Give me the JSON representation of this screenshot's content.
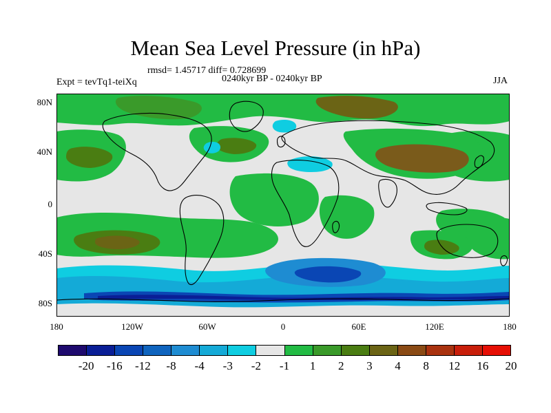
{
  "title": "Mean Sea Level Pressure (in hPa)",
  "stats": "rmsd= 1.45717 diff= 0.728699",
  "period": "0240kyr BP - 0240kyr BP",
  "experiment": "Expt = tevTq1-teiXq",
  "season": "JJA",
  "lat_labels": [
    "80N",
    "40N",
    "0",
    "40S",
    "80S"
  ],
  "lon_labels": [
    "180",
    "120W",
    "60W",
    "0",
    "60E",
    "120E",
    "180"
  ],
  "colorbar": {
    "colors": [
      "#1e0a6e",
      "#0a1e96",
      "#0a46b4",
      "#0f64be",
      "#1e8cd2",
      "#14aad7",
      "#0fcde1",
      "#e6e6e6",
      "#22bb44",
      "#3a9a2a",
      "#4a7d12",
      "#6b6415",
      "#8a4a14",
      "#a9320f",
      "#c81e0a",
      "#e60f05"
    ],
    "labels": [
      "-20",
      "-16",
      "-12",
      "-8",
      "-4",
      "-3",
      "-2",
      "-1",
      "1",
      "2",
      "3",
      "4",
      "8",
      "12",
      "16",
      "20"
    ]
  },
  "palette": {
    "land_outline": "#000000",
    "neutral": "#e6e6e6",
    "green": "#22bb44",
    "dkgreen": "#3a9a2a",
    "olive": "#4a7d12",
    "brown": "#6b6415",
    "cyan": "#0fcde1",
    "lblue": "#14aad7",
    "mblue": "#1e8cd2",
    "dblue": "#0a46b4"
  }
}
